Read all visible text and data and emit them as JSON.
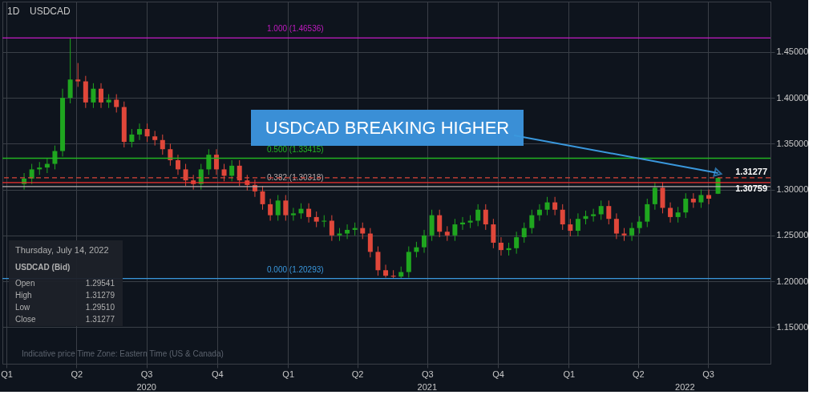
{
  "chart_data": {
    "type": "candlestick",
    "title": "USDCAD",
    "subtitle": "1D",
    "x": [
      "2020-01-24",
      "2020-02-03",
      "2020-02-13",
      "2020-02-23",
      "2020-03-04",
      "2020-03-14",
      "2020-03-24",
      "2020-04-03",
      "2020-04-13",
      "2020-04-23",
      "2020-05-03",
      "2020-05-13",
      "2020-05-23",
      "2020-06-02",
      "2020-06-12",
      "2020-06-22",
      "2020-07-02",
      "2020-07-12",
      "2020-07-22",
      "2020-08-01",
      "2020-08-11",
      "2020-08-21",
      "2020-08-31",
      "2020-09-10",
      "2020-09-20",
      "2020-09-30",
      "2020-10-10",
      "2020-10-20",
      "2020-10-30",
      "2020-11-09",
      "2020-11-19",
      "2020-11-29",
      "2020-12-09",
      "2020-12-19",
      "2020-12-29",
      "2021-01-08",
      "2021-01-18",
      "2021-01-28",
      "2021-02-07",
      "2021-02-17",
      "2021-02-27",
      "2021-03-09",
      "2021-03-19",
      "2021-03-29",
      "2021-04-08",
      "2021-04-18",
      "2021-04-28",
      "2021-05-08",
      "2021-05-18",
      "2021-05-28",
      "2021-06-07",
      "2021-06-17",
      "2021-06-27",
      "2021-07-07",
      "2021-07-17",
      "2021-07-27",
      "2021-08-06",
      "2021-08-16",
      "2021-08-26",
      "2021-09-05",
      "2021-09-15",
      "2021-09-25",
      "2021-10-05",
      "2021-10-15",
      "2021-10-25",
      "2021-11-04",
      "2021-11-14",
      "2021-11-24",
      "2021-12-04",
      "2021-12-14",
      "2021-12-24",
      "2022-01-03",
      "2022-01-13",
      "2022-01-23",
      "2022-02-02",
      "2022-02-12",
      "2022-02-22",
      "2022-03-04",
      "2022-03-14",
      "2022-03-24",
      "2022-04-03",
      "2022-04-13",
      "2022-04-23",
      "2022-05-03",
      "2022-05-13",
      "2022-05-23",
      "2022-06-02",
      "2022-06-12",
      "2022-06-22",
      "2022-07-02",
      "2022-07-14"
    ],
    "ohlc": [
      [
        1.306,
        1.318,
        1.3,
        1.312
      ],
      [
        1.312,
        1.328,
        1.306,
        1.322
      ],
      [
        1.322,
        1.33,
        1.316,
        1.324
      ],
      [
        1.324,
        1.334,
        1.318,
        1.328
      ],
      [
        1.328,
        1.348,
        1.322,
        1.342
      ],
      [
        1.342,
        1.41,
        1.336,
        1.4
      ],
      [
        1.4,
        1.465,
        1.394,
        1.42
      ],
      [
        1.42,
        1.438,
        1.412,
        1.418
      ],
      [
        1.418,
        1.424,
        1.389,
        1.395
      ],
      [
        1.395,
        1.416,
        1.389,
        1.41
      ],
      [
        1.41,
        1.416,
        1.389,
        1.395
      ],
      [
        1.395,
        1.404,
        1.389,
        1.398
      ],
      [
        1.398,
        1.404,
        1.384,
        1.39
      ],
      [
        1.39,
        1.396,
        1.346,
        1.352
      ],
      [
        1.352,
        1.366,
        1.346,
        1.36
      ],
      [
        1.36,
        1.372,
        1.354,
        1.366
      ],
      [
        1.366,
        1.372,
        1.352,
        1.358
      ],
      [
        1.358,
        1.364,
        1.348,
        1.354
      ],
      [
        1.354,
        1.36,
        1.338,
        1.344
      ],
      [
        1.344,
        1.35,
        1.326,
        1.332
      ],
      [
        1.332,
        1.338,
        1.316,
        1.322
      ],
      [
        1.322,
        1.328,
        1.304,
        1.31
      ],
      [
        1.31,
        1.316,
        1.3,
        1.306
      ],
      [
        1.306,
        1.328,
        1.3,
        1.322
      ],
      [
        1.322,
        1.344,
        1.316,
        1.338
      ],
      [
        1.338,
        1.344,
        1.316,
        1.322
      ],
      [
        1.322,
        1.328,
        1.309,
        1.315
      ],
      [
        1.315,
        1.332,
        1.309,
        1.326
      ],
      [
        1.326,
        1.332,
        1.304,
        1.31
      ],
      [
        1.31,
        1.316,
        1.299,
        1.305
      ],
      [
        1.305,
        1.311,
        1.292,
        1.298
      ],
      [
        1.298,
        1.304,
        1.278,
        1.284
      ],
      [
        1.284,
        1.29,
        1.266,
        1.272
      ],
      [
        1.272,
        1.294,
        1.266,
        1.288
      ],
      [
        1.288,
        1.294,
        1.266,
        1.272
      ],
      [
        1.272,
        1.28,
        1.266,
        1.274
      ],
      [
        1.274,
        1.285,
        1.268,
        1.279
      ],
      [
        1.279,
        1.285,
        1.264,
        1.27
      ],
      [
        1.27,
        1.276,
        1.259,
        1.265
      ],
      [
        1.265,
        1.272,
        1.259,
        1.266
      ],
      [
        1.266,
        1.272,
        1.244,
        1.25
      ],
      [
        1.25,
        1.258,
        1.244,
        1.252
      ],
      [
        1.252,
        1.262,
        1.246,
        1.256
      ],
      [
        1.256,
        1.264,
        1.25,
        1.258
      ],
      [
        1.258,
        1.264,
        1.246,
        1.252
      ],
      [
        1.252,
        1.258,
        1.226,
        1.232
      ],
      [
        1.232,
        1.238,
        1.206,
        1.212
      ],
      [
        1.212,
        1.218,
        1.204,
        1.206
      ],
      [
        1.206,
        1.212,
        1.203,
        1.205
      ],
      [
        1.205,
        1.216,
        1.203,
        1.21
      ],
      [
        1.21,
        1.238,
        1.204,
        1.232
      ],
      [
        1.232,
        1.243,
        1.226,
        1.237
      ],
      [
        1.237,
        1.256,
        1.231,
        1.25
      ],
      [
        1.25,
        1.278,
        1.244,
        1.272
      ],
      [
        1.272,
        1.278,
        1.248,
        1.254
      ],
      [
        1.254,
        1.26,
        1.244,
        1.25
      ],
      [
        1.25,
        1.268,
        1.244,
        1.262
      ],
      [
        1.262,
        1.27,
        1.256,
        1.264
      ],
      [
        1.264,
        1.272,
        1.258,
        1.266
      ],
      [
        1.266,
        1.284,
        1.26,
        1.278
      ],
      [
        1.278,
        1.284,
        1.256,
        1.262
      ],
      [
        1.262,
        1.268,
        1.236,
        1.242
      ],
      [
        1.242,
        1.248,
        1.228,
        1.234
      ],
      [
        1.234,
        1.242,
        1.228,
        1.236
      ],
      [
        1.236,
        1.254,
        1.23,
        1.248
      ],
      [
        1.248,
        1.264,
        1.242,
        1.258
      ],
      [
        1.258,
        1.278,
        1.252,
        1.272
      ],
      [
        1.272,
        1.284,
        1.266,
        1.278
      ],
      [
        1.278,
        1.292,
        1.272,
        1.286
      ],
      [
        1.286,
        1.292,
        1.272,
        1.278
      ],
      [
        1.278,
        1.284,
        1.256,
        1.262
      ],
      [
        1.262,
        1.268,
        1.249,
        1.255
      ],
      [
        1.255,
        1.274,
        1.249,
        1.268
      ],
      [
        1.268,
        1.277,
        1.262,
        1.271
      ],
      [
        1.271,
        1.279,
        1.265,
        1.273
      ],
      [
        1.273,
        1.288,
        1.267,
        1.282
      ],
      [
        1.282,
        1.288,
        1.262,
        1.268
      ],
      [
        1.268,
        1.274,
        1.246,
        1.252
      ],
      [
        1.252,
        1.258,
        1.244,
        1.25
      ],
      [
        1.25,
        1.264,
        1.244,
        1.258
      ],
      [
        1.258,
        1.271,
        1.252,
        1.265
      ],
      [
        1.265,
        1.29,
        1.259,
        1.284
      ],
      [
        1.284,
        1.308,
        1.278,
        1.302
      ],
      [
        1.302,
        1.308,
        1.274,
        1.28
      ],
      [
        1.28,
        1.286,
        1.264,
        1.27
      ],
      [
        1.27,
        1.281,
        1.264,
        1.275
      ],
      [
        1.275,
        1.296,
        1.269,
        1.29
      ],
      [
        1.29,
        1.296,
        1.28,
        1.286
      ],
      [
        1.286,
        1.3,
        1.28,
        1.294
      ],
      [
        1.294,
        1.3,
        1.284,
        1.29
      ],
      [
        1.29541,
        1.31279,
        1.2951,
        1.31277
      ]
    ],
    "colors": [
      "#1fa61f",
      "#1fa61f",
      "#1fa61f",
      "#1fa61f",
      "#1fa61f",
      "#1fa61f",
      "#1fa61f",
      "#e0473a",
      "#e0473a",
      "#1fa61f",
      "#e0473a",
      "#1fa61f",
      "#e0473a",
      "#e0473a",
      "#1fa61f",
      "#1fa61f",
      "#e0473a",
      "#e0473a",
      "#e0473a",
      "#e0473a",
      "#e0473a",
      "#e0473a",
      "#e0473a",
      "#1fa61f",
      "#1fa61f",
      "#e0473a",
      "#e0473a",
      "#1fa61f",
      "#e0473a",
      "#e0473a",
      "#e0473a",
      "#e0473a",
      "#e0473a",
      "#1fa61f",
      "#e0473a",
      "#1fa61f",
      "#1fa61f",
      "#e0473a",
      "#e0473a",
      "#1fa61f",
      "#e0473a",
      "#1fa61f",
      "#1fa61f",
      "#1fa61f",
      "#e0473a",
      "#e0473a",
      "#e0473a",
      "#e0473a",
      "#e0473a",
      "#1fa61f",
      "#1fa61f",
      "#1fa61f",
      "#1fa61f",
      "#1fa61f",
      "#e0473a",
      "#e0473a",
      "#1fa61f",
      "#1fa61f",
      "#1fa61f",
      "#1fa61f",
      "#e0473a",
      "#e0473a",
      "#e0473a",
      "#1fa61f",
      "#1fa61f",
      "#1fa61f",
      "#1fa61f",
      "#1fa61f",
      "#1fa61f",
      "#e0473a",
      "#e0473a",
      "#e0473a",
      "#1fa61f",
      "#1fa61f",
      "#1fa61f",
      "#1fa61f",
      "#e0473a",
      "#e0473a",
      "#e0473a",
      "#1fa61f",
      "#1fa61f",
      "#1fa61f",
      "#1fa61f",
      "#e0473a",
      "#e0473a",
      "#1fa61f",
      "#1fa61f",
      "#e0473a",
      "#1fa61f",
      "#e0473a",
      "#1fa61f"
    ],
    "xlim": [
      "2020-01-01",
      "2022-09-15"
    ],
    "xticks": [
      {
        "value": "2020-01-01",
        "label": "Q1"
      },
      {
        "value": "2020-04-01",
        "label": "Q2"
      },
      {
        "value": "2020-07-01",
        "label": "Q3"
      },
      {
        "value": "2020-10-01",
        "label": "Q4"
      },
      {
        "value": "2021-01-01",
        "label": "Q1"
      },
      {
        "value": "2021-04-01",
        "label": "Q2"
      },
      {
        "value": "2021-07-01",
        "label": "Q3"
      },
      {
        "value": "2021-10-01",
        "label": "Q4"
      },
      {
        "value": "2022-01-01",
        "label": "Q1"
      },
      {
        "value": "2022-04-01",
        "label": "Q2"
      },
      {
        "value": "2022-07-01",
        "label": "Q3"
      }
    ],
    "x2ticks": [
      {
        "value": "2020-07-01",
        "label": "2020"
      },
      {
        "value": "2021-07-01",
        "label": "2021"
      },
      {
        "value": "2022-06-01",
        "label": "2022"
      }
    ],
    "ylim": [
      1.11,
      1.505
    ],
    "yticks": [
      {
        "value": 1.15,
        "label": "1.15000"
      },
      {
        "value": 1.2,
        "label": "1.20000"
      },
      {
        "value": 1.25,
        "label": "1.25000"
      },
      {
        "value": 1.3,
        "label": "1.30000"
      },
      {
        "value": 1.35,
        "label": "1.35000"
      },
      {
        "value": 1.4,
        "label": "1.40000"
      },
      {
        "value": 1.45,
        "label": "1.45000"
      }
    ],
    "x2lim": [
      "2020-01-01",
      "2022-09-15"
    ],
    "grid": true,
    "ref_lines": [
      {
        "axis": "y",
        "value": 1.46536,
        "label": "1.000 (1.46536)",
        "color": "#c21bc2"
      },
      {
        "axis": "y",
        "value": 1.33415,
        "label": "0.500 (1.33415)",
        "color": "#22b322"
      },
      {
        "axis": "y",
        "value": 1.30318,
        "label": "0.382 (1.30318)",
        "color": "#b9aeae"
      },
      {
        "axis": "y",
        "value": 1.20293,
        "label": "0.000 (1.20293)",
        "color": "#3a98dd"
      },
      {
        "axis": "y",
        "value": 1.31277,
        "label": "1.31277",
        "color": "#d9453a",
        "line_style": "dashed"
      },
      {
        "axis": "y",
        "value": 1.30759,
        "label": "1.30759",
        "color": "#ee3030"
      }
    ],
    "annotations": [
      {
        "text": "USDCAD BREAKING HIGHER",
        "x": "2022-07-14",
        "y": 1.318
      },
      "Indicative price    Time Zone: Eastern Time (US & Canada)",
      "Thursday, July 14, 2022",
      "USDCAD (Bid)",
      "Open",
      "1.29541",
      "High",
      "1.31279",
      "Low",
      "1.29510",
      "Close",
      "1.31277"
    ]
  }
}
